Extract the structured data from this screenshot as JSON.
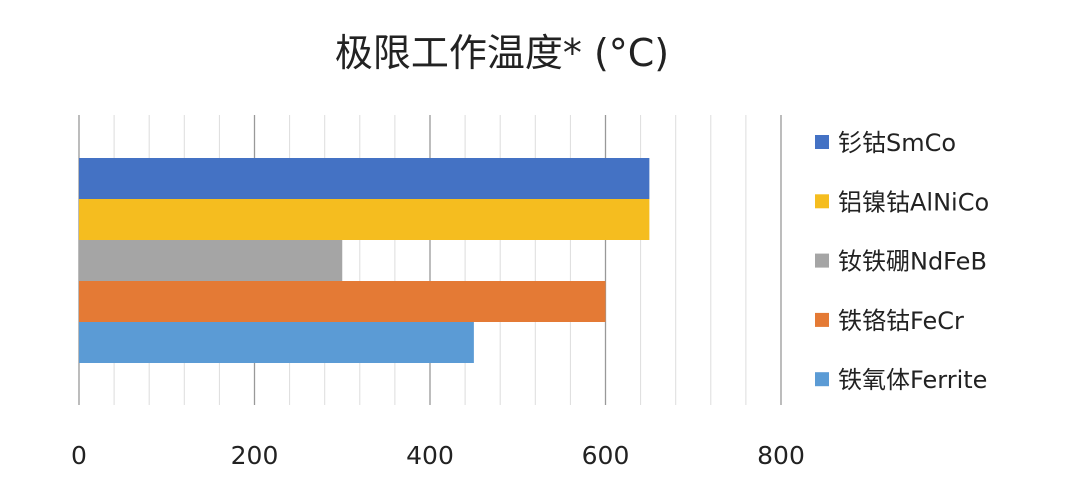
{
  "chart_data": {
    "type": "bar",
    "orientation": "horizontal",
    "title": "极限工作温度* (°C)",
    "xlabel": "",
    "ylabel": "",
    "xlim": [
      0,
      800
    ],
    "ticks": [
      "0",
      "200",
      "400",
      "600",
      "800"
    ],
    "tick_values": [
      0,
      200,
      400,
      600,
      800
    ],
    "minor_grid_step": 40,
    "grid": true,
    "legend_position": "right",
    "series": [
      {
        "name": "钐钴SmCo",
        "value": 650,
        "color": "#4472c4"
      },
      {
        "name": "铝镍钴AlNiCo",
        "value": 650,
        "color": "#f5bd1f"
      },
      {
        "name": "钕铁硼NdFeB",
        "value": 300,
        "color": "#a5a5a5"
      },
      {
        "name": "铁铬钴FeCr",
        "value": 600,
        "color": "#e47a35"
      },
      {
        "name": "铁氧体Ferrite",
        "value": 450,
        "color": "#5b9bd5"
      }
    ]
  }
}
